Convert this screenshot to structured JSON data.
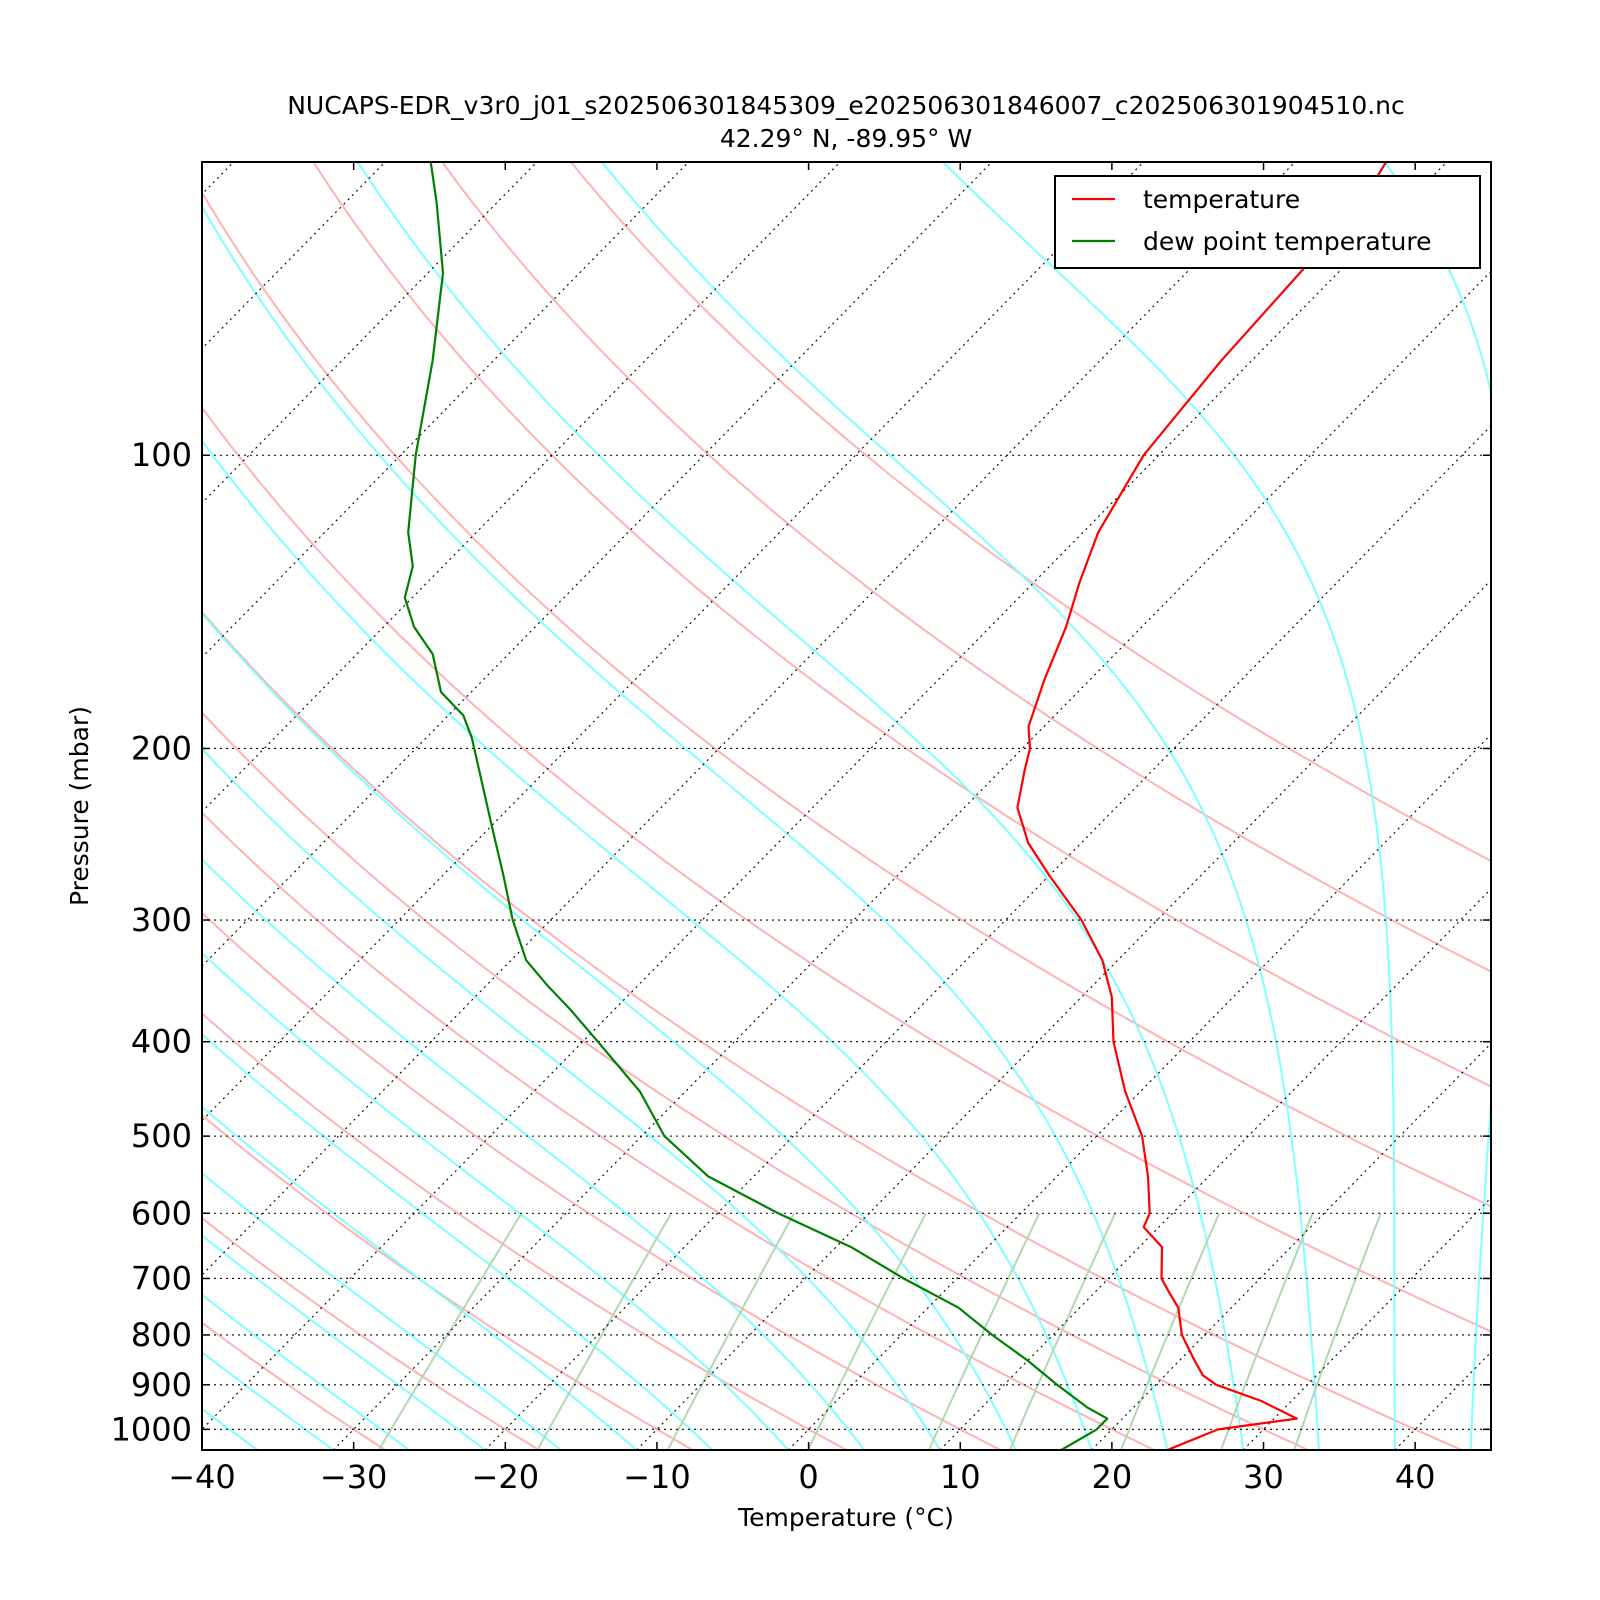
{
  "chart_data": {
    "type": "line",
    "subtype": "skew-t log-p",
    "title": "NUCAPS-EDR_v3r0_j01_s202506301845309_e202506301846007_c202506301904510.nc",
    "subtitle": "42.29$^\\circ$N, -89.95$^\\circ$W",
    "subtitle_display": "42.29° N, -89.95° W",
    "xlabel": "Temperature ($^\\circ$C)",
    "xlabel_display": "Temperature (°C)",
    "ylabel": "Pressure (mbar)",
    "xlim": [
      -40,
      45
    ],
    "ylim": [
      1050,
      50
    ],
    "y_scale": "log",
    "x_ticks": [
      -40,
      -30,
      -20,
      -10,
      0,
      10,
      20,
      30,
      40
    ],
    "x_tick_labels": [
      "−40",
      "−30",
      "−20",
      "−10",
      "0",
      "10",
      "20",
      "30",
      "40"
    ],
    "y_ticks": [
      100,
      200,
      300,
      400,
      500,
      600,
      700,
      800,
      900,
      1000
    ],
    "y_tick_labels": [
      "100",
      "200",
      "300",
      "400",
      "500",
      "600",
      "700",
      "800",
      "900",
      "1000"
    ],
    "grid": "horizontal dotted at y ticks",
    "legend_position": "top-right",
    "colors": {
      "temperature": "#ff0000",
      "dew_point": "#007f00",
      "dry_adiabat": "#ffb2b2",
      "moist_adiabat": "#7fffff",
      "mixing_ratio": "#b2d8b2",
      "isotherm": "#000000"
    },
    "series": [
      {
        "name": "temperature",
        "color": "#ff0000",
        "pressure": [
          1050,
          1000,
          975,
          935,
          900,
          880,
          850,
          800,
          750,
          725,
          700,
          650,
          620,
          600,
          550,
          500,
          450,
          400,
          360,
          330,
          300,
          270,
          250,
          230,
          210,
          200,
          190,
          170,
          150,
          135,
          120,
          100,
          80,
          65,
          55,
          50
        ],
        "temperature": [
          25.0,
          27.0,
          31.5,
          28.0,
          24.0,
          22.5,
          21.0,
          18.5,
          16.5,
          15.0,
          13.5,
          11.5,
          9.0,
          8.5,
          6.0,
          3.0,
          -1.0,
          -5.0,
          -8.0,
          -11.0,
          -15.0,
          -20.0,
          -23.5,
          -26.5,
          -28.5,
          -29.5,
          -31.0,
          -33.0,
          -35.0,
          -37.0,
          -39.0,
          -41.0,
          -42.0,
          -42.5,
          -43.0,
          -44.0
        ]
      },
      {
        "name": "dew point temperature",
        "color": "#007f00",
        "pressure": [
          1050,
          1000,
          975,
          950,
          900,
          850,
          800,
          750,
          700,
          650,
          600,
          550,
          500,
          450,
          400,
          370,
          350,
          330,
          300,
          270,
          240,
          210,
          195,
          185,
          175,
          160,
          150,
          140,
          130,
          120,
          100,
          80,
          65,
          55,
          50
        ],
        "temperature": [
          18.0,
          19.0,
          19.0,
          17.0,
          13.5,
          10.0,
          6.0,
          2.0,
          -3.5,
          -9.0,
          -16.0,
          -23.0,
          -28.5,
          -33.0,
          -39.0,
          -43.0,
          -46.0,
          -49.0,
          -52.5,
          -56.0,
          -60.0,
          -64.5,
          -67.0,
          -69.0,
          -72.0,
          -75.0,
          -78.0,
          -80.5,
          -82.0,
          -84.5,
          -89.0,
          -94.0,
          -99.0,
          -104.0,
          -107.0
        ]
      }
    ],
    "background_lines": {
      "dry_adiabats_theta_c": [
        -30,
        -20,
        -10,
        0,
        10,
        20,
        30,
        40,
        60,
        80,
        100,
        120,
        140
      ],
      "moist_adiabats_start_c": [
        -40,
        -35,
        -30,
        -25,
        -20,
        -15,
        -10,
        -5,
        0,
        5,
        10,
        15,
        20,
        25,
        30,
        35,
        40,
        45
      ],
      "mixing_ratio_lines_gkg": [
        0.4,
        1,
        2,
        4,
        7,
        10,
        16,
        24,
        32
      ],
      "isotherms_c": [
        -150,
        -140,
        -130,
        -120,
        -110,
        -100,
        -90,
        -80,
        -70,
        -60,
        -50,
        -40,
        -30,
        -20,
        -10,
        0,
        10,
        20,
        30,
        40
      ]
    }
  }
}
